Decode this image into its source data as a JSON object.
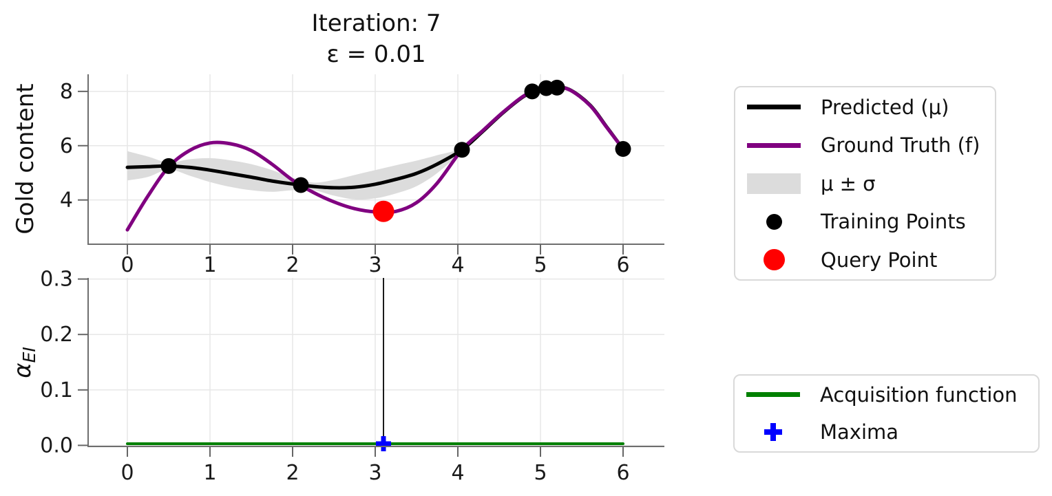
{
  "figure": {
    "title_line1": "Iteration: 7",
    "title_line2": "ε = 0.01"
  },
  "colors": {
    "predicted": "#000000",
    "ground_truth": "#800080",
    "uncertainty_band": "#dcdcdc",
    "training_points": "#000000",
    "query_point": "#ff0000",
    "acquisition": "#008000",
    "maxima": "#0000ff",
    "grid": "#e7e7e7",
    "spine": "#6e6e6e",
    "tick": "#666666",
    "vline": "#1a1a1a",
    "text": "#111111"
  },
  "chart_data": [
    {
      "type": "line",
      "title": "Iteration: 7  ε = 0.01",
      "xlabel": "",
      "ylabel": "Gold content",
      "xlim": [
        -0.475,
        6.5
      ],
      "ylim": [
        2.37,
        8.63
      ],
      "grid": true,
      "legend_position": "right-outside",
      "xticks": [
        0,
        1,
        2,
        3,
        4,
        5,
        6
      ],
      "xticklabels": [
        "0",
        "1",
        "2",
        "3",
        "4",
        "5",
        "6"
      ],
      "yticks": [
        4,
        6,
        8
      ],
      "yticklabels": [
        "4",
        "6",
        "8"
      ],
      "series": [
        {
          "name": "Predicted (μ)",
          "color": "#000000",
          "width": 5,
          "x": [
            0,
            0.25,
            0.5,
            0.75,
            1,
            1.25,
            1.5,
            1.75,
            2,
            2.25,
            2.5,
            2.75,
            3,
            3.25,
            3.5,
            3.75,
            4.05,
            4.3,
            4.55,
            4.8,
            5,
            5.15,
            5.35,
            5.6,
            5.8,
            6
          ],
          "y": [
            5.2,
            5.23,
            5.25,
            5.2,
            5.1,
            4.97,
            4.84,
            4.7,
            4.59,
            4.5,
            4.45,
            4.47,
            4.58,
            4.76,
            4.98,
            5.32,
            5.85,
            6.52,
            7.22,
            7.82,
            8.08,
            8.15,
            8.07,
            7.5,
            6.7,
            5.88
          ]
        },
        {
          "name": "Ground Truth (f)",
          "color": "#800080",
          "width": 5,
          "x": [
            0,
            0.25,
            0.5,
            0.75,
            1,
            1.25,
            1.5,
            1.75,
            2,
            2.25,
            2.5,
            2.75,
            3,
            3.25,
            3.5,
            3.75,
            4.05,
            4.3,
            4.55,
            4.8,
            5,
            5.15,
            5.35,
            5.6,
            5.8,
            6
          ],
          "y": [
            2.9,
            4.15,
            5.22,
            5.82,
            6.1,
            6.07,
            5.82,
            5.32,
            4.73,
            4.28,
            3.93,
            3.68,
            3.56,
            3.58,
            3.9,
            4.62,
            5.85,
            6.55,
            7.24,
            7.84,
            8.09,
            8.15,
            8.06,
            7.48,
            6.68,
            5.88
          ]
        }
      ],
      "band": {
        "name": "μ ± σ",
        "color": "#dcdcdc",
        "x": [
          0,
          0.25,
          0.5,
          0.75,
          1,
          1.25,
          1.5,
          1.75,
          2,
          2.25,
          2.5,
          2.75,
          3,
          3.25,
          3.5,
          3.75,
          4.05,
          4.3,
          4.55,
          4.8,
          5,
          5.15,
          5.35,
          5.6,
          5.8,
          6
        ],
        "upper": [
          5.8,
          5.6,
          5.38,
          5.5,
          5.54,
          5.46,
          5.32,
          5.1,
          4.82,
          4.64,
          4.74,
          4.92,
          5.1,
          5.28,
          5.45,
          5.65,
          5.92,
          6.56,
          7.25,
          7.84,
          8.09,
          8.16,
          8.08,
          7.51,
          6.71,
          5.89
        ],
        "lower": [
          4.72,
          4.85,
          5.12,
          4.9,
          4.66,
          4.48,
          4.36,
          4.3,
          4.36,
          4.36,
          4.16,
          4.02,
          4.06,
          4.24,
          4.51,
          4.99,
          5.78,
          6.48,
          7.19,
          7.8,
          8.07,
          8.14,
          8.06,
          7.49,
          6.69,
          5.87
        ]
      },
      "training_points": {
        "name": "Training Points",
        "color": "#000000",
        "x": [
          0.5,
          2.1,
          4.05,
          4.9,
          5.07,
          5.2,
          6.0
        ],
        "y": [
          5.25,
          4.55,
          5.85,
          8.0,
          8.12,
          8.14,
          5.88
        ]
      },
      "query_point": {
        "name": "Query Point",
        "color": "#ff0000",
        "x": 3.1,
        "y": 3.58
      }
    },
    {
      "type": "line",
      "xlabel": "",
      "ylabel": "α_EI",
      "ylabel_main": "α",
      "ylabel_sub": "EI",
      "xlim": [
        -0.475,
        6.5
      ],
      "ylim": [
        -0.002,
        0.302
      ],
      "grid": true,
      "legend_position": "right-outside",
      "xticks": [
        0,
        1,
        2,
        3,
        4,
        5,
        6
      ],
      "xticklabels": [
        "0",
        "1",
        "2",
        "3",
        "4",
        "5",
        "6"
      ],
      "yticks": [
        0,
        0.1,
        0.2,
        0.3
      ],
      "yticklabels": [
        "0.0",
        "0.1",
        "0.2",
        "0.3"
      ],
      "series": [
        {
          "name": "Acquisition function",
          "color": "#008000",
          "width": 4,
          "x": [
            0,
            6
          ],
          "y": [
            0.003,
            0.003
          ]
        }
      ],
      "vline": {
        "x": 3.1
      },
      "maxima": {
        "name": "Maxima",
        "color": "#0000ff",
        "x": 3.1,
        "y": 0.003
      }
    }
  ]
}
